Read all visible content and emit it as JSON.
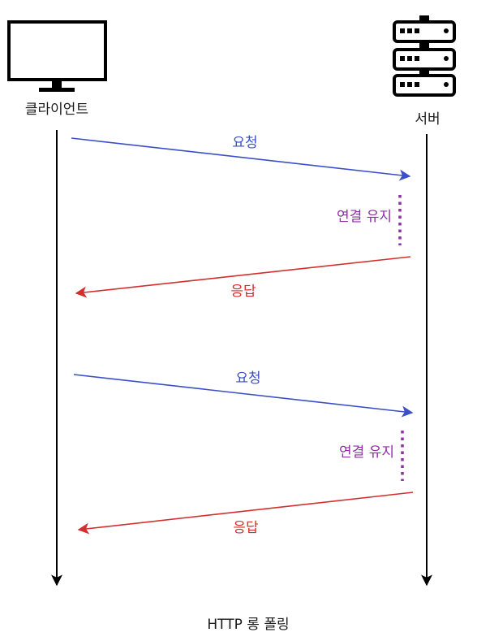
{
  "actors": {
    "client": {
      "label": "클라이언트",
      "icon": "monitor-icon"
    },
    "server": {
      "label": "서버",
      "icon": "server-rack-icon"
    }
  },
  "messages": [
    {
      "label": "요청",
      "direction": "client-to-server",
      "color": "#3a4fc8"
    },
    {
      "label": "연결 유지",
      "kind": "hold",
      "color": "#8e2fa3"
    },
    {
      "label": "응답",
      "direction": "server-to-client",
      "color": "#d32f2f"
    },
    {
      "label": "요청",
      "direction": "client-to-server",
      "color": "#3a4fc8"
    },
    {
      "label": "연결 유지",
      "kind": "hold",
      "color": "#8e2fa3"
    },
    {
      "label": "응답",
      "direction": "server-to-client",
      "color": "#d32f2f"
    }
  ],
  "caption": "HTTP 롱 폴링",
  "colors": {
    "request": "#3a4fc8",
    "hold": "#8e2fa3",
    "response": "#d32f2f",
    "lifeline": "#000000"
  }
}
